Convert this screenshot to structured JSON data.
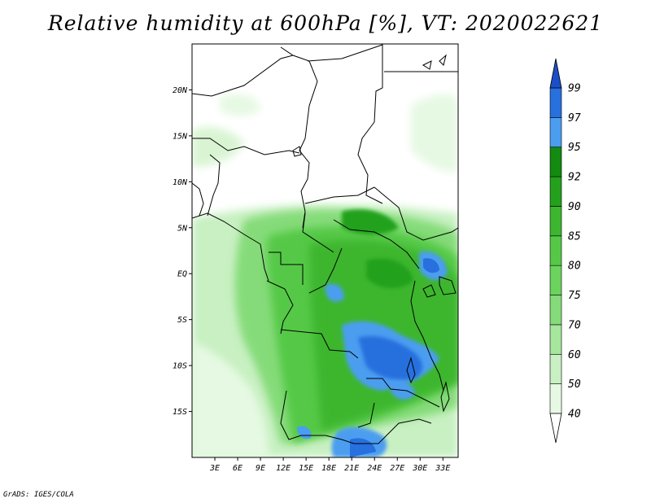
{
  "title": "Relative humidity at 600hPa [%], VT: 2020022621",
  "footer": "GrADS: IGES/COLA",
  "map": {
    "lat_ticks": [
      "20N",
      "15N",
      "10N",
      "5N",
      "EQ",
      "5S",
      "10S",
      "15S"
    ],
    "lon_ticks": [
      "3E",
      "6E",
      "9E",
      "12E",
      "15E",
      "18E",
      "21E",
      "24E",
      "27E",
      "30E",
      "33E"
    ],
    "lon_range": [
      0,
      35
    ],
    "lat_range": [
      -20,
      25
    ]
  },
  "colorbar": {
    "levels": [
      "40",
      "50",
      "60",
      "70",
      "75",
      "80",
      "85",
      "90",
      "92",
      "95",
      "97",
      "99"
    ],
    "colors": [
      "#ffffff",
      "#e6f9e3",
      "#c8f0c2",
      "#a6e69d",
      "#85db79",
      "#6bd35e",
      "#55c947",
      "#3cb62f",
      "#24a11c",
      "#138a10",
      "#4b9df0",
      "#2770de",
      "#1b4fc8"
    ]
  }
}
